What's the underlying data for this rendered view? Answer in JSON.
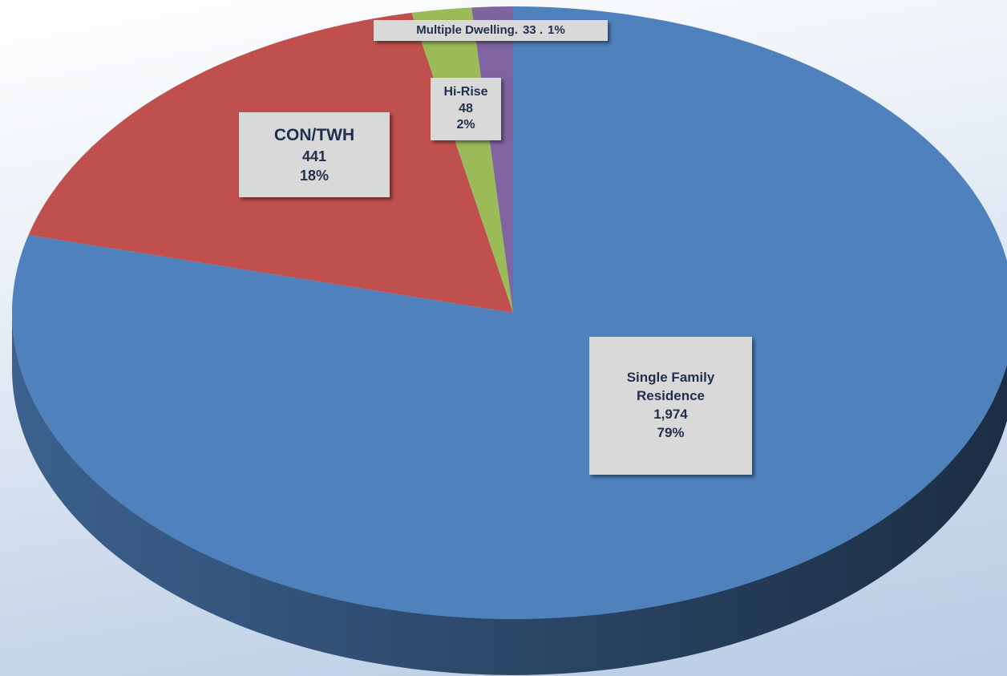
{
  "chart_data": {
    "type": "pie",
    "categories": [
      "Single Family Residence",
      "CON/TWH",
      "Hi-Rise",
      "Multiple Dwelling."
    ],
    "values": [
      1974,
      441,
      48,
      33
    ],
    "value_labels": [
      "1,974",
      "441",
      "48",
      "33 ."
    ],
    "percents": [
      79,
      18,
      2,
      1
    ],
    "percent_labels": [
      "79%",
      "18%",
      "2%",
      "1%"
    ],
    "colors": [
      "#4f81bd",
      "#c0504d",
      "#9bbb59",
      "#8064a2"
    ]
  }
}
